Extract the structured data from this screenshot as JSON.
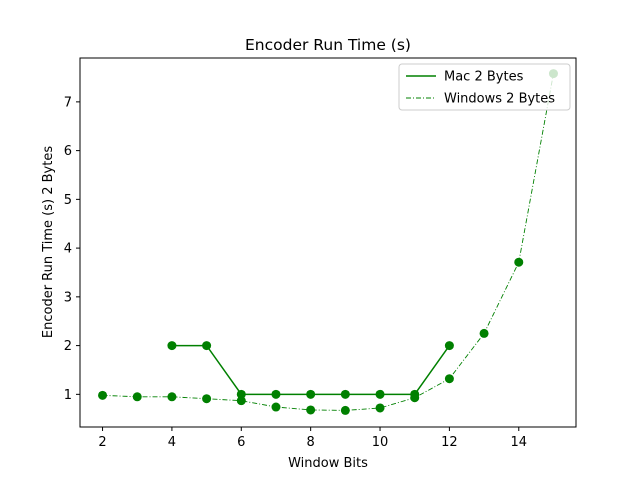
{
  "chart_data": {
    "type": "line",
    "title": "Encoder Run Time (s)",
    "xlabel": "Window Bits",
    "ylabel": "Encoder Run Time (s) 2 Bytes",
    "xlim": [
      1.35,
      15.65
    ],
    "ylim": [
      0.33,
      7.9
    ],
    "xticks": [
      2,
      4,
      6,
      8,
      10,
      12,
      14
    ],
    "yticks": [
      1,
      2,
      3,
      4,
      5,
      6,
      7
    ],
    "grid": false,
    "legend_position": "top-right",
    "color": "#008000",
    "series": [
      {
        "name": "Mac 2 Bytes",
        "line_style": "solid",
        "x": [
          4,
          5,
          6,
          7,
          8,
          9,
          10,
          11,
          12
        ],
        "y": [
          2.0,
          2.0,
          1.0,
          1.0,
          1.0,
          1.0,
          1.0,
          1.0,
          2.0
        ]
      },
      {
        "name": "Windows 2 Bytes",
        "line_style": "dash-dot",
        "x": [
          2,
          3,
          4,
          5,
          6,
          7,
          8,
          9,
          10,
          11,
          12,
          13,
          14,
          15
        ],
        "y": [
          0.98,
          0.95,
          0.95,
          0.91,
          0.87,
          0.74,
          0.68,
          0.67,
          0.72,
          0.93,
          1.32,
          2.25,
          3.71,
          7.58
        ]
      }
    ]
  }
}
